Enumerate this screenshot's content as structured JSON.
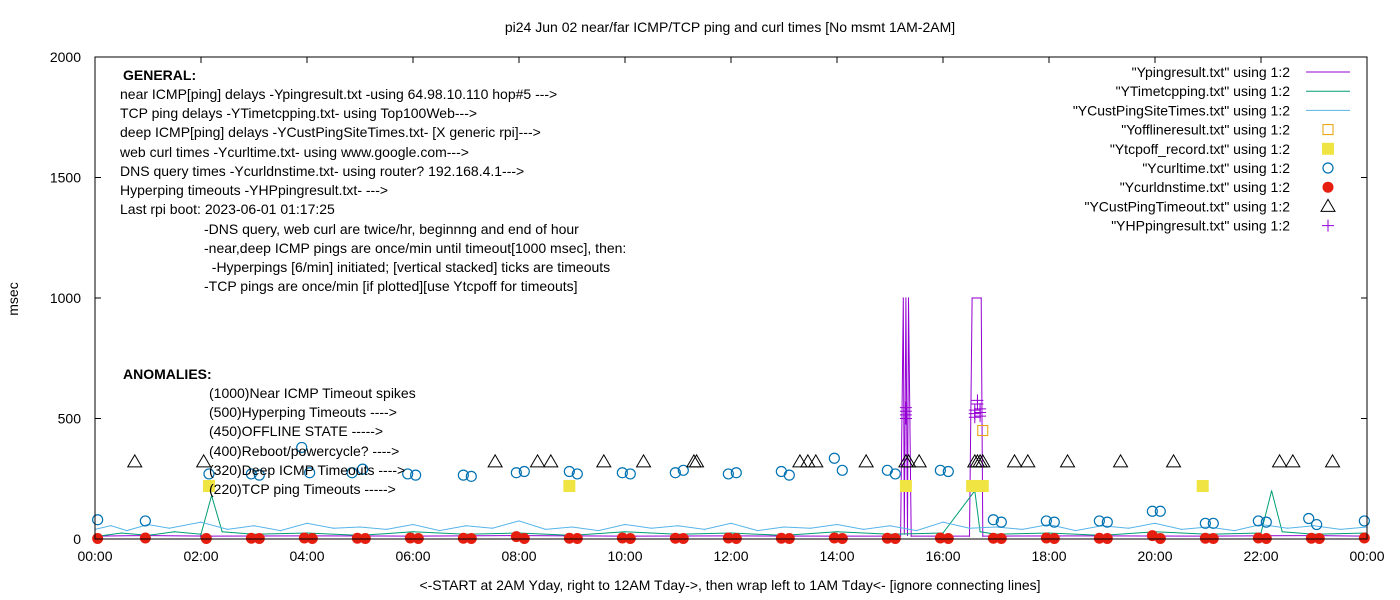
{
  "chart_data": {
    "type": "line",
    "title": "pi24 Jun 02  near/far ICMP/TCP ping and curl times [No msmt 1AM-2AM]",
    "xlabel": "<-START at 2AM Yday, right to 12AM Tday->, then wrap left to 1AM Tday<- [ignore connecting lines]",
    "ylabel": "msec",
    "xlim": [
      0,
      24
    ],
    "ylim": [
      0,
      2000
    ],
    "x_ticks": [
      "00:00",
      "02:00",
      "04:00",
      "06:00",
      "08:00",
      "10:00",
      "12:00",
      "14:00",
      "16:00",
      "18:00",
      "20:00",
      "22:00",
      "00:00"
    ],
    "y_ticks": [
      "0",
      "500",
      "1000",
      "1500",
      "2000"
    ],
    "legend_position": "top-right",
    "annotations": {
      "general_heading": "GENERAL:",
      "general_lines": [
        "near ICMP[ping] delays -Ypingresult.txt -using 64.98.10.110 hop#5 --->",
        "TCP ping delays -YTimetcpping.txt- using Top100Web--->",
        "deep ICMP[ping] delays -YCustPingSiteTimes.txt- [X generic rpi]--->",
        "web curl times -Ycurltime.txt- using www.google.com--->",
        "DNS query times -Ycurldnstime.txt- using router? 192.168.4.1--->",
        "Hyperping timeouts -YHPpingresult.txt- --->",
        "Last rpi boot: 2023-06-01 01:17:25"
      ],
      "notes": [
        "-DNS query, web curl are twice/hr, beginnng and end of hour",
        "-near,deep ICMP pings are once/min until timeout[1000 msec], then:",
        "  -Hyperpings [6/min] initiated; [vertical stacked] ticks are timeouts",
        "-TCP pings are once/min [if plotted][use Ytcpoff for timeouts]"
      ],
      "anomalies_heading": "ANOMALIES:",
      "anomalies_lines": [
        "(1000)Near ICMP Timeout spikes",
        "(500)Hyperping Timeouts ---->",
        "(450)OFFLINE STATE ----->",
        "(400)Reboot/powercycle? ---->",
        "(320)Deep ICMP Timeouts ---->",
        "(220)TCP ping Timeouts ----->"
      ]
    },
    "series": [
      {
        "name": "\"Ypingresult.txt\" using 1:2",
        "style": "line",
        "color": "#9400d3",
        "x": [
          0,
          1.0,
          2.2,
          4.0,
          6.0,
          8.0,
          10.0,
          12.0,
          14.0,
          15.2,
          15.25,
          15.27,
          15.3,
          15.33,
          15.35,
          15.4,
          16.5,
          16.55,
          16.6,
          16.65,
          16.7,
          16.72,
          16.75,
          17.0,
          19.0,
          21.0,
          23.0,
          24.0
        ],
        "y": [
          12,
          14,
          12,
          13,
          12,
          14,
          12,
          13,
          12,
          12,
          1000,
          20,
          1000,
          15,
          1000,
          12,
          12,
          1000,
          1000,
          1000,
          1000,
          1000,
          12,
          12,
          13,
          12,
          14,
          12
        ]
      },
      {
        "name": "\"YTimetcpping.txt\" using 1:2",
        "style": "line",
        "color": "#009e73",
        "x": [
          0,
          0.5,
          1.0,
          1.5,
          2.0,
          2.2,
          2.4,
          3.0,
          4.0,
          5.0,
          6.0,
          7.0,
          8.0,
          9.0,
          10.0,
          11.0,
          12.0,
          13.0,
          14.0,
          15.0,
          16.0,
          16.6,
          16.7,
          17.0,
          18.0,
          19.0,
          20.0,
          21.0,
          22.0,
          22.2,
          22.4,
          23.0,
          24.0
        ],
        "y": [
          10,
          25,
          15,
          30,
          20,
          180,
          30,
          20,
          25,
          15,
          30,
          20,
          25,
          15,
          30,
          20,
          25,
          15,
          30,
          20,
          25,
          200,
          30,
          20,
          25,
          15,
          30,
          20,
          25,
          200,
          30,
          20,
          25
        ]
      },
      {
        "name": "\"YCustPingSiteTimes.txt\" using 1:2",
        "style": "line",
        "color": "#56b4e9",
        "x": [
          0,
          0.3,
          0.6,
          1.0,
          1.4,
          2.0,
          2.5,
          3.0,
          3.5,
          4.0,
          4.5,
          5.0,
          5.5,
          6.0,
          6.5,
          7.0,
          7.5,
          8.0,
          8.5,
          9.0,
          9.5,
          10.0,
          10.5,
          11.0,
          11.5,
          12.0,
          12.5,
          13.0,
          13.5,
          14.0,
          14.5,
          15.0,
          15.5,
          16.0,
          16.5,
          17.0,
          17.5,
          18.0,
          18.5,
          19.0,
          19.5,
          20.0,
          20.5,
          21.0,
          21.5,
          22.0,
          22.5,
          23.0,
          23.5,
          24.0
        ],
        "y": [
          40,
          55,
          35,
          60,
          45,
          70,
          40,
          55,
          35,
          65,
          45,
          50,
          40,
          60,
          35,
          55,
          45,
          75,
          40,
          50,
          35,
          60,
          45,
          55,
          40,
          65,
          35,
          50,
          45,
          60,
          40,
          55,
          35,
          70,
          45,
          50,
          40,
          60,
          35,
          55,
          45,
          65,
          40,
          50,
          35,
          60,
          45,
          55,
          40,
          50
        ]
      },
      {
        "name": "\"Yofflineresult.txt\" using 1:2",
        "style": "open-square",
        "color": "#e69f00",
        "x": [
          16.75
        ],
        "y": [
          450
        ]
      },
      {
        "name": "\"Ytcpoff_record.txt\" using 1:2",
        "style": "filled-square",
        "color": "#f0e442",
        "x": [
          2.15,
          8.95,
          15.3,
          16.55,
          16.75,
          20.9
        ],
        "y": [
          220,
          220,
          220,
          220,
          220,
          220
        ]
      },
      {
        "name": "\"Ycurltime.txt\" using 1:2",
        "style": "open-circle",
        "color": "#0072b2",
        "x": [
          0.05,
          0.95,
          2.15,
          2.95,
          3.1,
          3.9,
          4.05,
          4.85,
          5.05,
          5.9,
          6.05,
          6.95,
          7.1,
          7.95,
          8.1,
          8.95,
          9.1,
          9.95,
          10.1,
          10.95,
          11.1,
          11.95,
          12.1,
          12.95,
          13.1,
          13.95,
          14.1,
          14.95,
          15.1,
          15.95,
          16.1,
          16.95,
          17.1,
          17.95,
          18.1,
          18.95,
          19.1,
          19.95,
          20.1,
          20.95,
          21.1,
          21.95,
          22.1,
          22.9,
          23.05,
          23.95
        ],
        "y": [
          80,
          75,
          270,
          270,
          265,
          380,
          275,
          275,
          290,
          270,
          265,
          265,
          260,
          275,
          280,
          280,
          270,
          275,
          270,
          275,
          285,
          270,
          275,
          280,
          265,
          335,
          285,
          285,
          270,
          285,
          280,
          80,
          70,
          75,
          70,
          75,
          70,
          115,
          115,
          65,
          65,
          75,
          70,
          85,
          60,
          75
        ]
      },
      {
        "name": "\"Ycurldnstime.txt\" using 1:2",
        "style": "filled-circle",
        "color": "#e51e10",
        "x": [
          0.05,
          0.95,
          2.1,
          2.95,
          3.1,
          3.95,
          4.1,
          4.95,
          5.1,
          5.95,
          6.1,
          6.95,
          7.1,
          7.95,
          8.1,
          8.95,
          9.1,
          9.95,
          10.1,
          10.95,
          11.1,
          11.95,
          12.1,
          12.95,
          13.1,
          13.95,
          14.1,
          14.95,
          15.1,
          15.95,
          16.1,
          16.95,
          17.1,
          17.95,
          18.1,
          18.95,
          19.1,
          19.95,
          20.1,
          20.95,
          21.1,
          21.95,
          22.1,
          22.95,
          23.1,
          23.95
        ],
        "y": [
          2,
          4,
          2,
          3,
          2,
          4,
          2,
          3,
          2,
          4,
          2,
          3,
          2,
          10,
          2,
          3,
          2,
          4,
          2,
          3,
          2,
          4,
          2,
          3,
          2,
          4,
          2,
          3,
          2,
          4,
          2,
          3,
          2,
          4,
          2,
          3,
          2,
          14,
          2,
          3,
          2,
          4,
          2,
          3,
          2,
          4
        ]
      },
      {
        "name": "\"YCustPingTimeout.txt\" using 1:2",
        "style": "open-triangle",
        "color": "#000000",
        "x": [
          0.75,
          2.05,
          7.55,
          8.35,
          8.6,
          9.6,
          10.35,
          11.3,
          11.35,
          13.3,
          13.45,
          13.6,
          14.55,
          15.3,
          15.35,
          15.55,
          16.6,
          16.65,
          16.7,
          16.75,
          17.35,
          17.6,
          18.35,
          19.35,
          20.35,
          22.35,
          22.6,
          23.35
        ],
        "y": [
          320,
          320,
          320,
          320,
          320,
          320,
          320,
          320,
          320,
          320,
          320,
          320,
          320,
          320,
          320,
          320,
          320,
          320,
          320,
          320,
          320,
          320,
          320,
          320,
          320,
          320,
          320,
          320
        ]
      },
      {
        "name": "\"YHPpingresult.txt\" using 1:2",
        "style": "plus",
        "color": "#9400d3",
        "x": [
          15.3,
          15.3,
          15.3,
          15.3,
          16.6,
          16.6,
          16.6,
          16.65,
          16.65,
          16.7,
          16.7,
          16.7
        ],
        "y": [
          500,
          515,
          530,
          545,
          505,
          520,
          535,
          560,
          575,
          510,
          525,
          540
        ]
      }
    ]
  }
}
